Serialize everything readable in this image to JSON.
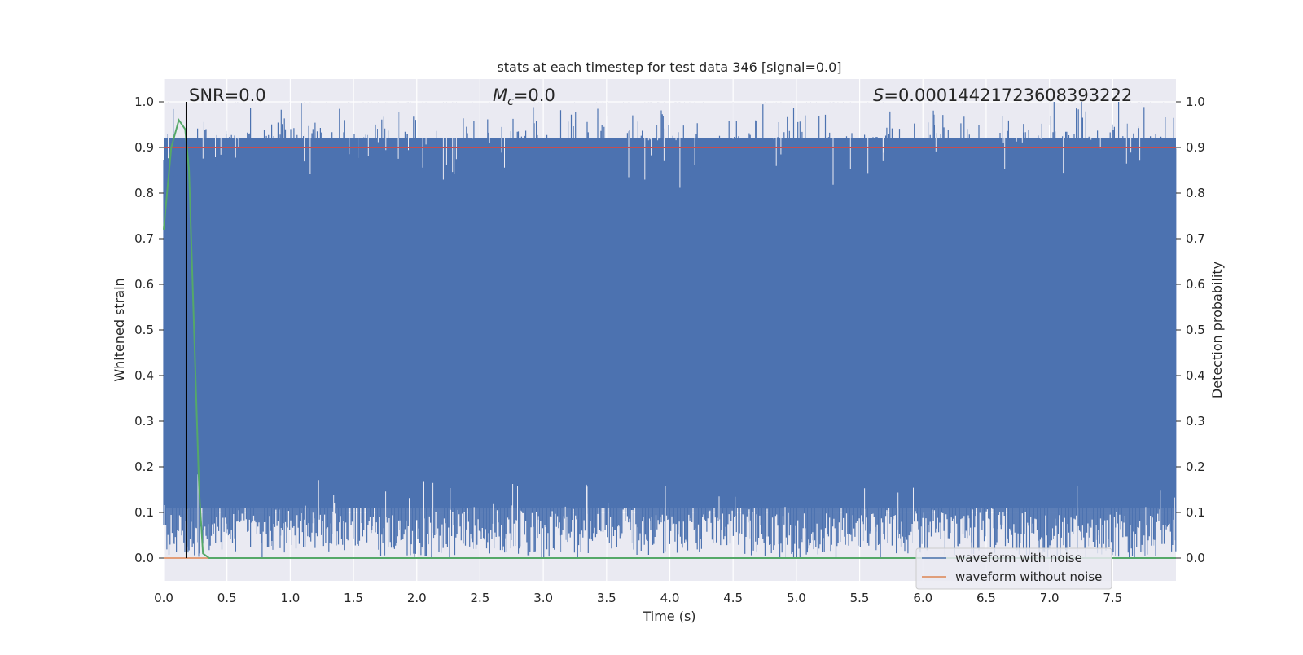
{
  "chart_data": {
    "type": "line",
    "title": "stats at each timestep for test data 346 [signal=0.0]",
    "xlabel": "Time (s)",
    "ylabel": "Whitened strain",
    "ylabel_right": "Detection probability",
    "xlim": [
      0.0,
      8.0
    ],
    "ylim": [
      -0.05,
      1.05
    ],
    "xticks": [
      "0.0",
      "0.5",
      "1.0",
      "1.5",
      "2.0",
      "2.5",
      "3.0",
      "3.5",
      "4.0",
      "4.5",
      "5.0",
      "5.5",
      "6.0",
      "6.5",
      "7.0",
      "7.5"
    ],
    "yticks": [
      "0.0",
      "0.1",
      "0.2",
      "0.3",
      "0.4",
      "0.5",
      "0.6",
      "0.7",
      "0.8",
      "0.9",
      "1.0"
    ],
    "annotations": {
      "snr": "SNR=0.0",
      "mc_symbol": "M",
      "mc_sub": "c",
      "mc_value": "=0.0",
      "s_symbol": "S",
      "s_value": "=0.00014421723608393222"
    },
    "legend": {
      "position": "lower-right",
      "entries": [
        {
          "label": "waveform with noise",
          "color": "#4c72b0"
        },
        {
          "label": "waveform without noise",
          "color": "#dd8452"
        }
      ]
    },
    "colors": {
      "background": "#eaeaf2",
      "grid": "#ffffff",
      "noise": "#4c72b0",
      "no_noise": "#dd8452",
      "threshold": "#c44e52",
      "probability": "#55a868",
      "marker": "#000000"
    },
    "series": [
      {
        "name": "waveform with noise",
        "envelope_x": [
          0.0,
          0.5,
          1.0,
          1.5,
          2.0,
          2.5,
          3.0,
          3.5,
          4.0,
          4.5,
          5.0,
          5.5,
          6.0,
          6.5,
          7.0,
          7.5,
          8.0
        ],
        "envelope_low": [
          0.1,
          0.12,
          0.11,
          0.13,
          0.1,
          0.12,
          0.1,
          0.12,
          0.11,
          0.13,
          0.1,
          0.12,
          0.11,
          0.12,
          0.1,
          0.11,
          0.1
        ],
        "envelope_high": [
          0.93,
          0.92,
          0.94,
          0.92,
          0.93,
          0.91,
          0.93,
          0.92,
          0.94,
          0.92,
          0.93,
          0.92,
          0.93,
          0.92,
          0.94,
          0.93,
          0.92
        ]
      },
      {
        "name": "waveform without noise",
        "x": [
          0.0,
          8.0
        ],
        "y": [
          0.0,
          0.0
        ]
      },
      {
        "name": "",
        "x": [
          0.0,
          8.0
        ],
        "y": [
          0.9,
          0.9
        ]
      },
      {
        "name": "",
        "x": [
          0.0,
          0.06,
          0.12,
          0.17,
          0.2,
          0.24,
          0.28,
          0.31,
          0.36,
          1.0,
          8.0
        ],
        "y": [
          0.72,
          0.9,
          0.96,
          0.94,
          0.85,
          0.5,
          0.15,
          0.01,
          0.0,
          0.0,
          0.0
        ]
      }
    ],
    "vline_x": 0.18
  }
}
